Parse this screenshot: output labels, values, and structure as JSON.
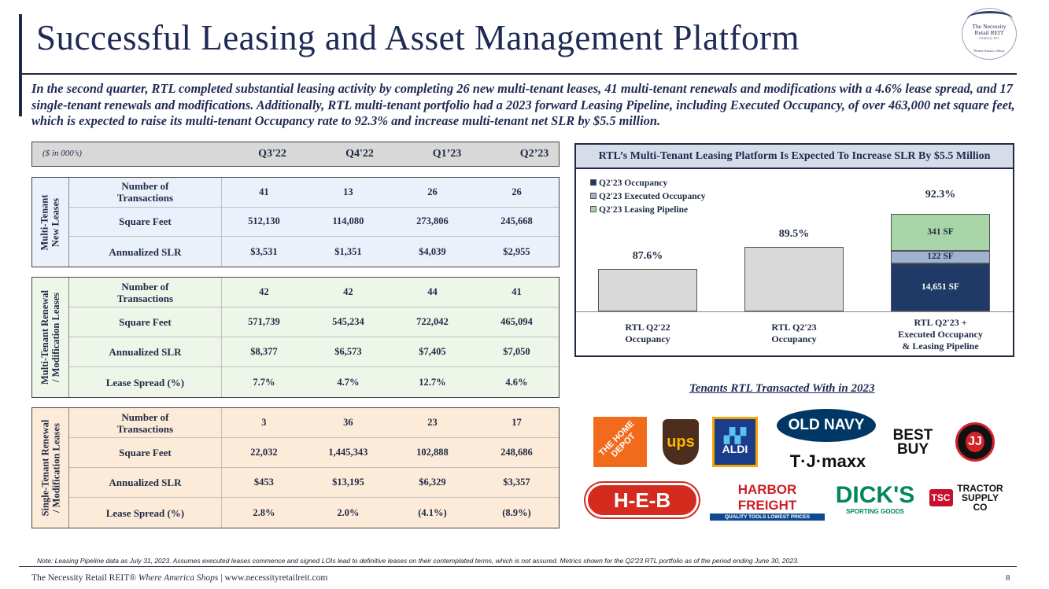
{
  "header": {
    "title": "Successful Leasing and Asset Management Platform",
    "logo": {
      "line1": "The Necessity",
      "line2": "Retail REIT",
      "line3": "NASDAQ: RTL",
      "tagline": "Where America Shops"
    },
    "intro": "In the second quarter, RTL completed substantial leasing activity by completing 26 new multi-tenant leases, 41 multi-tenant renewals and modifications with a 4.6% lease spread, and 17 single-tenant renewals and modifications. Additionally, RTL multi-tenant portfolio had a 2023 forward Leasing Pipeline, including Executed Occupancy, of over 463,000 net square feet, which is expected to raise its multi-tenant Occupancy rate to 92.3% and increase multi-tenant net SLR by $5.5 million."
  },
  "table": {
    "unit": "($ in 000’s)",
    "quarters": [
      "Q3'22",
      "Q4'22",
      "Q1’23",
      "Q2’23"
    ],
    "blocks": [
      {
        "side": [
          "Multi-Tenant",
          "New Leases"
        ],
        "rows": [
          {
            "label": [
              "Number of",
              "Transactions"
            ],
            "values": [
              "41",
              "13",
              "26",
              "26"
            ]
          },
          {
            "label": [
              "Square Feet"
            ],
            "values": [
              "512,130",
              "114,080",
              "273,806",
              "245,668"
            ]
          },
          {
            "label": [
              "Annualized SLR"
            ],
            "values": [
              "$3,531",
              "$1,351",
              "$4,039",
              "$2,955"
            ]
          }
        ]
      },
      {
        "side": [
          "Multi-Tenant Renewal",
          "/ Modification Leases"
        ],
        "rows": [
          {
            "label": [
              "Number of",
              "Transactions"
            ],
            "values": [
              "42",
              "42",
              "44",
              "41"
            ]
          },
          {
            "label": [
              "Square Feet"
            ],
            "values": [
              "571,739",
              "545,234",
              "722,042",
              "465,094"
            ]
          },
          {
            "label": [
              "Annualized SLR"
            ],
            "values": [
              "$8,377",
              "$6,573",
              "$7,405",
              "$7,050"
            ]
          },
          {
            "label": [
              "Lease Spread (%)"
            ],
            "values": [
              "7.7%",
              "4.7%",
              "12.7%",
              "4.6%"
            ]
          }
        ]
      },
      {
        "side": [
          "Single-Tenant Renewal",
          "/ Modification Leases"
        ],
        "rows": [
          {
            "label": [
              "Number of",
              "Transactions"
            ],
            "values": [
              "3",
              "36",
              "23",
              "17"
            ]
          },
          {
            "label": [
              "Square Feet"
            ],
            "values": [
              "22,032",
              "1,445,343",
              "102,888",
              "248,686"
            ]
          },
          {
            "label": [
              "Annualized SLR"
            ],
            "values": [
              "$453",
              "$13,195",
              "$6,329",
              "$3,357"
            ]
          },
          {
            "label": [
              "Lease Spread (%)"
            ],
            "values": [
              "2.8%",
              "2.0%",
              "(4.1%)",
              "(8.9%)"
            ]
          }
        ]
      }
    ]
  },
  "chart_data": {
    "type": "bar",
    "title": "RTL’s Multi-Tenant Leasing Platform Is Expected To Increase SLR By $5.5 Million",
    "legend": [
      "Q2'23 Occupancy",
      "Q2'23 Executed Occupancy",
      "Q2'23 Leasing Pipeline"
    ],
    "categories": [
      [
        "RTL Q2'22",
        "Occupancy"
      ],
      [
        "RTL Q2'23",
        "Occupancy"
      ],
      [
        "RTL Q2'23 +",
        "Executed Occupancy",
        "& Leasing Pipeline"
      ]
    ],
    "values": [
      87.6,
      89.5,
      92.3
    ],
    "value_labels": [
      "87.6%",
      "89.5%",
      "92.3%"
    ],
    "stacked_segments": [
      {
        "name": "Q2'23 Occupancy",
        "label": "14,651 SF",
        "value": 14651,
        "color": "#1f3a66"
      },
      {
        "name": "Q2'23 Executed Occupancy",
        "label": "122 SF",
        "value": 122,
        "color": "#9fb3d1"
      },
      {
        "name": "Q2'23 Leasing Pipeline",
        "label": "341 SF",
        "value": 341,
        "color": "#a8d5a8"
      }
    ],
    "ylim": [
      84,
      93
    ]
  },
  "tenants": {
    "heading": "Tenants RTL Transacted With in 2023",
    "logos": [
      "THE HOME DEPOT",
      "ups",
      "ALDI",
      "OLD NAVY",
      "T·J·maxx",
      "BEST BUY",
      "JJ",
      "H-E-B",
      "HARBOR FREIGHT",
      "QUALITY TOOLS  LOWEST PRICES",
      "DICK'S",
      "SPORTING GOODS",
      "TSC",
      "TRACTOR SUPPLY CO"
    ]
  },
  "note": "Note: Leasing Pipeline data as July 31, 2023. Assumes executed leases commence and signed LOIs lead to definitive leases on their contemplated terms, which is not assured. Metrics shown for the Q2'23 RTL portfolio as of the period ending June 30, 2023.",
  "footer": {
    "company": "The Necessity Retail REIT®",
    "tagline": "Where America Shops",
    "separator": "|",
    "url": "www.necessityretailreit.com",
    "page": "8"
  },
  "colors": {
    "navy": "#1f2a55",
    "blue_block": "#eaf1fa",
    "green_block": "#eef5e9",
    "orange_block": "#fdebd9"
  }
}
